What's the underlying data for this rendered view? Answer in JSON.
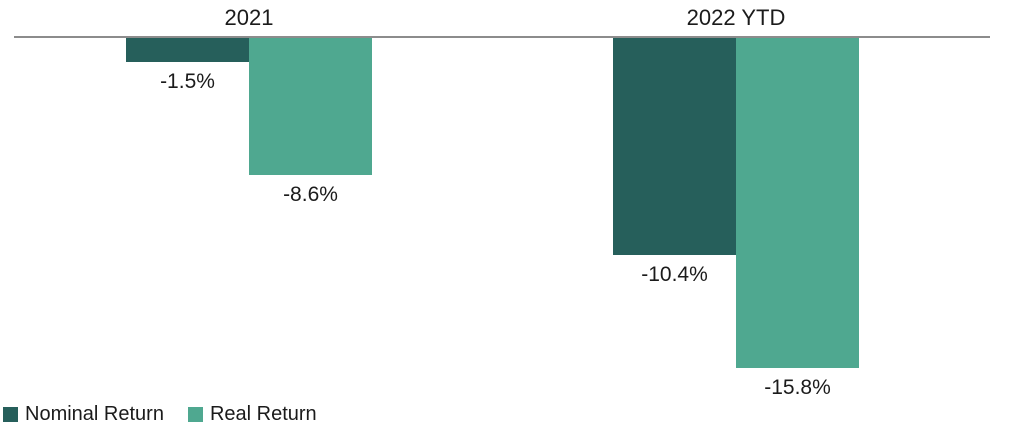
{
  "chart_data": {
    "type": "bar",
    "title": "",
    "xlabel": "",
    "ylabel": "",
    "categories": [
      "2021",
      "2022 YTD"
    ],
    "series": [
      {
        "name": "Nominal Return",
        "color": "#265F5B",
        "values": [
          -1.5,
          -10.4
        ],
        "labels": [
          "-1.5%",
          "-10.4%"
        ]
      },
      {
        "name": "Real Return",
        "color": "#4FA890",
        "values": [
          -8.6,
          -15.8
        ],
        "labels": [
          "-8.6%",
          "-15.8%"
        ]
      }
    ],
    "baseline_value": 0,
    "bars_direction": "down",
    "grid": false,
    "legend_position": "bottom-left",
    "axis_line_color": "#8C8C8C",
    "value_label_color": "#1B1B1B",
    "background": "#FFFFFF"
  }
}
